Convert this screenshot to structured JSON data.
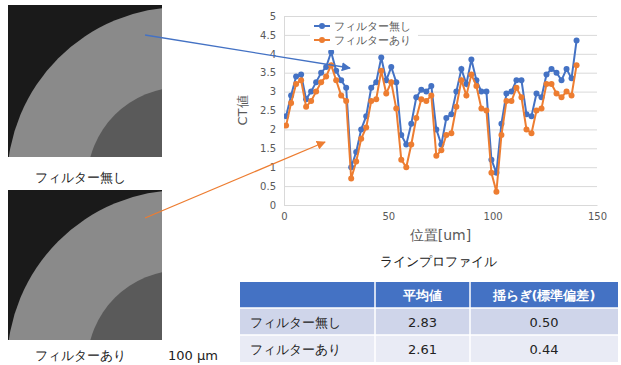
{
  "chart_data": {
    "type": "line",
    "title": "ラインプロファイル",
    "x_label": "位置[um]",
    "y_label": "CT値",
    "x": [
      1.0,
      3.4,
      5.8,
      8.2,
      10.6,
      13.0,
      15.4,
      17.8,
      20.2,
      22.6,
      25.0,
      27.4,
      29.8,
      32.2,
      34.6,
      37.0,
      39.4,
      41.8,
      44.2,
      46.6,
      49.0,
      51.4,
      53.8,
      56.2,
      58.6,
      61.0,
      63.4,
      65.8,
      68.2,
      70.6,
      73.0,
      75.4,
      77.8,
      80.2,
      82.6,
      85.0,
      87.4,
      89.8,
      92.2,
      94.6,
      97.0,
      99.4,
      101.8,
      104.2,
      106.6,
      109.0,
      111.4,
      113.8,
      116.2,
      118.6,
      121.0,
      123.4,
      125.8,
      128.2,
      130.6,
      133.0,
      135.4,
      137.8,
      140.2
    ],
    "series": [
      {
        "name": "フィルター無し",
        "color": "#4472c4",
        "marker": "circle",
        "line_style": "solid",
        "values": [
          2.35,
          2.9,
          3.4,
          3.45,
          2.8,
          3.0,
          3.25,
          3.5,
          3.65,
          4.05,
          3.55,
          3.3,
          3.1,
          1.0,
          1.4,
          2.0,
          2.35,
          3.1,
          3.25,
          3.9,
          3.3,
          3.65,
          3.25,
          1.85,
          1.6,
          2.15,
          2.85,
          3.05,
          3.0,
          3.15,
          2.0,
          1.6,
          2.3,
          2.4,
          3.0,
          3.6,
          3.2,
          3.85,
          3.3,
          3.0,
          3.0,
          1.2,
          0.85,
          2.15,
          2.95,
          3.0,
          3.3,
          3.3,
          2.4,
          2.35,
          2.95,
          2.85,
          3.45,
          3.6,
          3.5,
          3.3,
          3.6,
          3.35,
          4.35
        ]
      },
      {
        "name": "フィルターあり",
        "color": "#ed7d31",
        "marker": "circle",
        "line_style": "solid",
        "values": [
          2.1,
          2.7,
          3.2,
          3.3,
          2.6,
          2.75,
          3.0,
          3.25,
          3.4,
          3.7,
          3.3,
          2.9,
          2.75,
          0.7,
          1.15,
          1.75,
          2.05,
          2.75,
          2.8,
          3.55,
          2.95,
          3.25,
          2.55,
          1.2,
          1.0,
          1.6,
          2.3,
          2.8,
          2.75,
          2.9,
          1.3,
          1.45,
          1.85,
          1.9,
          2.6,
          3.3,
          2.9,
          3.45,
          3.15,
          2.55,
          2.5,
          0.85,
          0.35,
          1.85,
          2.75,
          2.75,
          3.1,
          2.85,
          2.0,
          1.9,
          2.5,
          2.55,
          3.2,
          3.2,
          2.95,
          2.85,
          3.0,
          2.9,
          3.7
        ]
      }
    ],
    "xlim": [
      0,
      150
    ],
    "xticks": [
      0,
      50,
      100,
      150
    ],
    "ylim": [
      0,
      5
    ],
    "yticks": [
      0,
      0.5,
      1,
      1.5,
      2,
      2.5,
      3,
      3.5,
      4,
      4.5,
      5
    ],
    "grid": true,
    "legend": "top-left"
  },
  "images": [
    {
      "caption": "フィルター無し"
    },
    {
      "caption": "フィルターあり",
      "scale_label": "100 μm"
    }
  ],
  "table": {
    "header": [
      "平均値",
      "揺らぎ(標準偏差)"
    ],
    "rows": [
      [
        "フィルター無し",
        "2.83",
        "0.50"
      ],
      [
        "フィルターあり",
        "2.61",
        "0.44"
      ]
    ]
  }
}
